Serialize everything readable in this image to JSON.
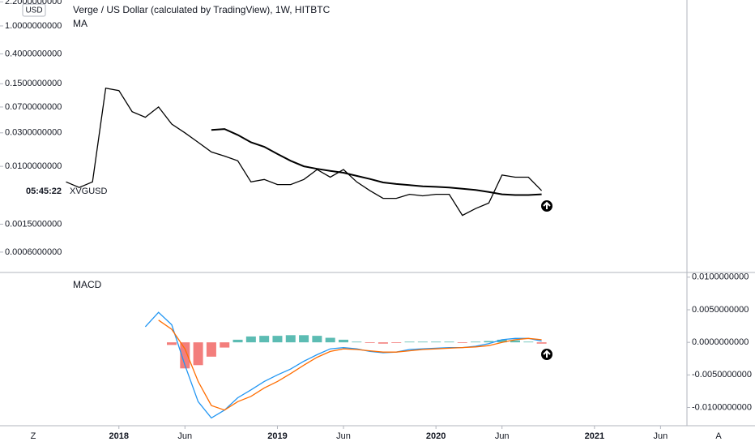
{
  "chart_data": [
    {
      "type": "line",
      "title": "Verge / US Dollar (calculated by TradingView), 1W, HITBTC",
      "currency": "USD",
      "countdown": "05:45:22",
      "log_scale": true,
      "xlim": [
        "2017-04",
        "2021-08"
      ],
      "ylim": [
        0.000316,
        2.34
      ],
      "yticks": [
        {
          "value": 2.2,
          "label": "2.2000000000"
        },
        {
          "value": 1.0,
          "label": "1.0000000000"
        },
        {
          "value": 0.4,
          "label": "0.4000000000"
        },
        {
          "value": 0.15,
          "label": "0.1500000000"
        },
        {
          "value": 0.07,
          "label": "0.0700000000"
        },
        {
          "value": 0.03,
          "label": "0.0300000000"
        },
        {
          "value": 0.01,
          "label": "0.0100000000"
        },
        {
          "value": 0.0015,
          "label": "0.0015000000"
        },
        {
          "value": 0.0006,
          "label": "0.0006000000"
        }
      ],
      "series": [
        {
          "name": "XVGUSD",
          "color": "#000000",
          "x": [
            "2017-09",
            "2017-10",
            "2017-11",
            "2017-12",
            "2018-01",
            "2018-02",
            "2018-03",
            "2018-04",
            "2018-05",
            "2018-06",
            "2018-07",
            "2018-08",
            "2018-09",
            "2018-10",
            "2018-11",
            "2018-12",
            "2019-01",
            "2019-02",
            "2019-03",
            "2019-04",
            "2019-05",
            "2019-06",
            "2019-07",
            "2019-08",
            "2019-09",
            "2019-10",
            "2019-11",
            "2019-12",
            "2020-01",
            "2020-02",
            "2020-03",
            "2020-04",
            "2020-05",
            "2020-06",
            "2020-07",
            "2020-08",
            "2020-09"
          ],
          "values": [
            0.006,
            0.005,
            0.006,
            0.13,
            0.12,
            0.06,
            0.05,
            0.07,
            0.04,
            0.03,
            0.022,
            0.016,
            0.014,
            0.012,
            0.006,
            0.0065,
            0.0055,
            0.0055,
            0.0065,
            0.009,
            0.007,
            0.009,
            0.006,
            0.0045,
            0.0035,
            0.0035,
            0.004,
            0.0038,
            0.004,
            0.004,
            0.002,
            0.0025,
            0.003,
            0.0075,
            0.007,
            0.007,
            0.0045
          ]
        },
        {
          "name": "MA",
          "color": "#000000",
          "x": [
            "2018-08",
            "2018-09",
            "2018-10",
            "2018-11",
            "2018-12",
            "2019-01",
            "2019-02",
            "2019-03",
            "2019-04",
            "2019-05",
            "2019-06",
            "2019-07",
            "2019-08",
            "2019-09",
            "2019-10",
            "2019-11",
            "2019-12",
            "2020-01",
            "2020-02",
            "2020-03",
            "2020-04",
            "2020-05",
            "2020-06",
            "2020-07",
            "2020-08",
            "2020-09"
          ],
          "values": [
            0.033,
            0.034,
            0.028,
            0.022,
            0.019,
            0.015,
            0.012,
            0.01,
            0.0092,
            0.0086,
            0.0081,
            0.0073,
            0.0066,
            0.0059,
            0.0056,
            0.0054,
            0.0052,
            0.0051,
            0.005,
            0.0048,
            0.0046,
            0.0043,
            0.004,
            0.0039,
            0.0039,
            0.004
          ]
        }
      ]
    },
    {
      "type": "macd",
      "title": "MACD",
      "xlim": [
        "2017-04",
        "2021-08"
      ],
      "xticks": [
        {
          "value": "2018-01",
          "label": "2018"
        },
        {
          "value": "2018-06",
          "label": "Jun"
        },
        {
          "value": "2019-01",
          "label": "2019"
        },
        {
          "value": "2019-06",
          "label": "Jun"
        },
        {
          "value": "2020-01",
          "label": "2020"
        },
        {
          "value": "2020-06",
          "label": "Jun"
        },
        {
          "value": "2021-01",
          "label": "2021"
        },
        {
          "value": "2021-06",
          "label": "Jun"
        }
      ],
      "ylim": [
        -0.0128,
        0.0106
      ],
      "yticks": [
        {
          "value": 0.01,
          "label": "0.0100000000"
        },
        {
          "value": 0.005,
          "label": "0.0050000000"
        },
        {
          "value": 0,
          "label": "0.0000000000"
        },
        {
          "value": -0.005,
          "label": "-0.0050000000"
        },
        {
          "value": -0.01,
          "label": "-0.0100000000"
        }
      ],
      "series": [
        {
          "name": "MACD",
          "color": "#2196f3",
          "x": [
            "2018-03",
            "2018-04",
            "2018-05",
            "2018-06",
            "2018-07",
            "2018-08",
            "2018-09",
            "2018-10",
            "2018-11",
            "2018-12",
            "2019-01",
            "2019-02",
            "2019-03",
            "2019-04",
            "2019-05",
            "2019-06",
            "2019-07",
            "2019-08",
            "2019-09",
            "2019-10",
            "2019-11",
            "2019-12",
            "2020-01",
            "2020-02",
            "2020-03",
            "2020-04",
            "2020-05",
            "2020-06",
            "2020-07",
            "2020-08",
            "2020-09"
          ],
          "values": [
            0.0024,
            0.0046,
            0.0027,
            -0.0035,
            -0.0091,
            -0.0116,
            -0.0104,
            -0.0085,
            -0.0073,
            -0.006,
            -0.005,
            -0.0041,
            -0.0029,
            -0.0019,
            -0.001,
            -0.0008,
            -0.001,
            -0.0014,
            -0.0016,
            -0.0015,
            -0.0011,
            -0.001,
            -0.0009,
            -0.0008,
            -0.0008,
            -0.0006,
            -0.0002,
            0.0004,
            0.0006,
            0.0006,
            0.0002
          ]
        },
        {
          "color": "#ff6d00",
          "x": [
            "2018-04",
            "2018-05",
            "2018-06",
            "2018-07",
            "2018-08",
            "2018-09",
            "2018-10",
            "2018-11",
            "2018-12",
            "2019-01",
            "2019-02",
            "2019-03",
            "2019-04",
            "2019-05",
            "2019-06",
            "2019-07",
            "2019-08",
            "2019-09",
            "2019-10",
            "2019-11",
            "2019-12",
            "2020-01",
            "2020-02",
            "2020-03",
            "2020-04",
            "2020-05",
            "2020-06",
            "2020-07",
            "2020-08",
            "2020-09"
          ],
          "values": [
            0.0034,
            0.002,
            -0.001,
            -0.006,
            -0.0097,
            -0.0104,
            -0.0091,
            -0.0083,
            -0.007,
            -0.006,
            -0.0048,
            -0.0035,
            -0.0023,
            -0.0014,
            -0.001,
            -0.0011,
            -0.0013,
            -0.0015,
            -0.0015,
            -0.0013,
            -0.0011,
            -0.001,
            -0.0009,
            -0.0008,
            -0.0007,
            -0.0005,
            0.0,
            0.0004,
            0.0006,
            0.0004
          ]
        }
      ],
      "histogram": {
        "positive_color": "#26a69a",
        "negative_color": "#ef5350",
        "x": [
          "2018-05",
          "2018-06",
          "2018-07",
          "2018-08",
          "2018-09",
          "2018-10",
          "2018-11",
          "2018-12",
          "2019-01",
          "2019-02",
          "2019-03",
          "2019-04",
          "2019-05",
          "2019-06",
          "2019-07",
          "2019-08",
          "2019-09",
          "2019-10",
          "2019-11",
          "2019-12",
          "2020-01",
          "2020-02",
          "2020-03",
          "2020-04",
          "2020-05",
          "2020-06",
          "2020-07",
          "2020-08",
          "2020-09"
        ],
        "values": [
          -0.0004,
          -0.004,
          -0.0035,
          -0.0022,
          -0.0008,
          0.0004,
          0.0009,
          0.001,
          0.001,
          0.0011,
          0.0011,
          0.001,
          0.0007,
          0.0004,
          0.0001,
          -0.0001,
          -0.0002,
          -0.0001,
          0.0001,
          0.0001,
          0.0001,
          0.0001,
          -0.0001,
          0.0001,
          0.0002,
          0.0004,
          0.0003,
          0.0001,
          -0.0002
        ]
      }
    }
  ],
  "buttons": {
    "left": "Z",
    "right": "A"
  }
}
